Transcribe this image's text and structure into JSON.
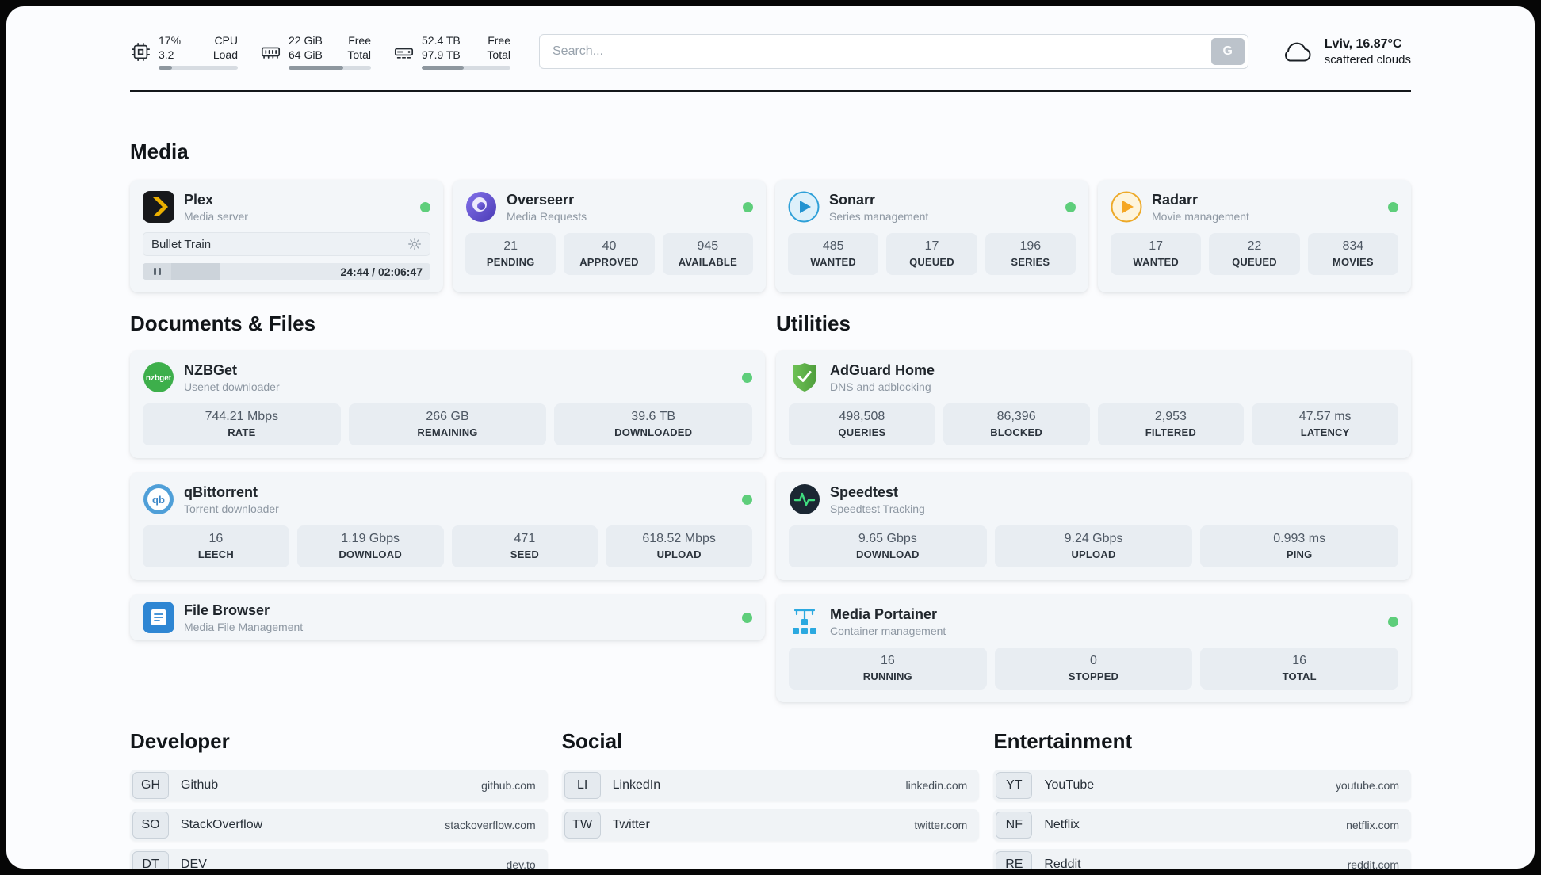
{
  "topbar": {
    "cpu": {
      "value_top": "17%",
      "value_bottom": "3.2",
      "label_top": "CPU",
      "label_bottom": "Load",
      "progress": 17
    },
    "ram": {
      "value_top": "22 GiB",
      "value_bottom": "64 GiB",
      "label_top": "Free",
      "label_bottom": "Total",
      "progress": 66
    },
    "disk": {
      "value_top": "52.4 TB",
      "value_bottom": "97.9 TB",
      "label_top": "Free",
      "label_bottom": "Total",
      "progress": 47
    },
    "search": {
      "placeholder": "Search...",
      "button_label": "G"
    },
    "weather": {
      "location": "Lviv, 16.87°C",
      "condition": "scattered clouds"
    }
  },
  "media": {
    "title": "Media",
    "plex": {
      "name": "Plex",
      "subtitle": "Media server",
      "now_playing": "Bullet Train",
      "time": "24:44 / 02:06:47",
      "progress": 19
    },
    "overseerr": {
      "name": "Overseerr",
      "subtitle": "Media Requests",
      "stats": [
        {
          "value": "21",
          "label": "PENDING"
        },
        {
          "value": "40",
          "label": "APPROVED"
        },
        {
          "value": "945",
          "label": "AVAILABLE"
        }
      ]
    },
    "sonarr": {
      "name": "Sonarr",
      "subtitle": "Series management",
      "stats": [
        {
          "value": "485",
          "label": "WANTED"
        },
        {
          "value": "17",
          "label": "QUEUED"
        },
        {
          "value": "196",
          "label": "SERIES"
        }
      ]
    },
    "radarr": {
      "name": "Radarr",
      "subtitle": "Movie management",
      "stats": [
        {
          "value": "17",
          "label": "WANTED"
        },
        {
          "value": "22",
          "label": "QUEUED"
        },
        {
          "value": "834",
          "label": "MOVIES"
        }
      ]
    }
  },
  "documents": {
    "title": "Documents & Files",
    "nzbget": {
      "name": "NZBGet",
      "subtitle": "Usenet downloader",
      "stats": [
        {
          "value": "744.21 Mbps",
          "label": "RATE"
        },
        {
          "value": "266 GB",
          "label": "REMAINING"
        },
        {
          "value": "39.6 TB",
          "label": "DOWNLOADED"
        }
      ]
    },
    "qbittorrent": {
      "name": "qBittorrent",
      "subtitle": "Torrent downloader",
      "stats": [
        {
          "value": "16",
          "label": "LEECH"
        },
        {
          "value": "1.19 Gbps",
          "label": "DOWNLOAD"
        },
        {
          "value": "471",
          "label": "SEED"
        },
        {
          "value": "618.52 Mbps",
          "label": "UPLOAD"
        }
      ]
    },
    "filebrowser": {
      "name": "File Browser",
      "subtitle": "Media File Management"
    }
  },
  "utilities": {
    "title": "Utilities",
    "adguard": {
      "name": "AdGuard Home",
      "subtitle": "DNS and adblocking",
      "stats": [
        {
          "value": "498,508",
          "label": "QUERIES"
        },
        {
          "value": "86,396",
          "label": "BLOCKED"
        },
        {
          "value": "2,953",
          "label": "FILTERED"
        },
        {
          "value": "47.57 ms",
          "label": "LATENCY"
        }
      ]
    },
    "speedtest": {
      "name": "Speedtest",
      "subtitle": "Speedtest Tracking",
      "stats": [
        {
          "value": "9.65 Gbps",
          "label": "DOWNLOAD"
        },
        {
          "value": "9.24 Gbps",
          "label": "UPLOAD"
        },
        {
          "value": "0.993 ms",
          "label": "PING"
        }
      ]
    },
    "portainer": {
      "name": "Media Portainer",
      "subtitle": "Container management",
      "stats": [
        {
          "value": "16",
          "label": "RUNNING"
        },
        {
          "value": "0",
          "label": "STOPPED"
        },
        {
          "value": "16",
          "label": "TOTAL"
        }
      ]
    }
  },
  "bookmarks": {
    "developer": {
      "title": "Developer",
      "items": [
        {
          "abbr": "GH",
          "name": "Github",
          "url": "github.com"
        },
        {
          "abbr": "SO",
          "name": "StackOverflow",
          "url": "stackoverflow.com"
        },
        {
          "abbr": "DT",
          "name": "DEV",
          "url": "dev.to"
        }
      ]
    },
    "social": {
      "title": "Social",
      "items": [
        {
          "abbr": "LI",
          "name": "LinkedIn",
          "url": "linkedin.com"
        },
        {
          "abbr": "TW",
          "name": "Twitter",
          "url": "twitter.com"
        }
      ]
    },
    "entertainment": {
      "title": "Entertainment",
      "items": [
        {
          "abbr": "YT",
          "name": "YouTube",
          "url": "youtube.com"
        },
        {
          "abbr": "NF",
          "name": "Netflix",
          "url": "netflix.com"
        },
        {
          "abbr": "RE",
          "name": "Reddit",
          "url": "reddit.com"
        }
      ]
    }
  },
  "colors": {
    "status_online": "#5ece7b"
  }
}
